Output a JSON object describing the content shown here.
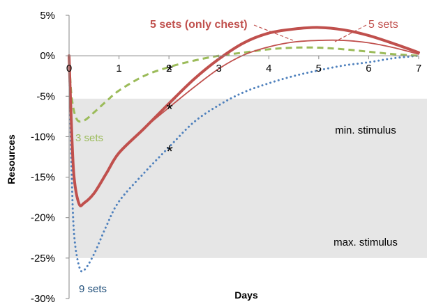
{
  "chart_data": {
    "type": "line",
    "xlabel": "Days",
    "ylabel": "Resources",
    "xlim": [
      0,
      7
    ],
    "ylim": [
      -30,
      5
    ],
    "x_ticks": [
      "0",
      "1",
      "2",
      "3",
      "4",
      "5",
      "6",
      "7"
    ],
    "y_ticks": [
      "5%",
      "0%",
      "-5%",
      "-10%",
      "-15%",
      "-20%",
      "-25%",
      "-30%"
    ],
    "stimulus_band": {
      "from": -25,
      "to": -5.3,
      "color": "#e6e6e6"
    },
    "band_labels": {
      "min": "min. stimulus",
      "max": "max. stimulus"
    },
    "series": [
      {
        "name": "5 sets (only chest)",
        "color": "#c0504d",
        "style": "solid-thick",
        "x": [
          0,
          0.05,
          0.1,
          0.2,
          0.3,
          0.5,
          0.75,
          1,
          1.5,
          2,
          2.5,
          3,
          3.5,
          4,
          4.5,
          5,
          5.5,
          6,
          6.5,
          7
        ],
        "y": [
          0,
          -9,
          -15,
          -18.3,
          -18.2,
          -17,
          -14.5,
          -12,
          -9,
          -5.9,
          -2.9,
          -0.4,
          1.6,
          2.8,
          3.3,
          3.5,
          3.2,
          2.5,
          1.5,
          0.4
        ]
      },
      {
        "name": "5 sets",
        "color": "#c0504d",
        "style": "solid-thin",
        "x": [
          0,
          0.05,
          0.1,
          0.2,
          0.3,
          0.5,
          0.75,
          1,
          1.5,
          2,
          2.5,
          3,
          3.5,
          4,
          4.5,
          5,
          5.5,
          6,
          6.5,
          7
        ],
        "y": [
          0,
          -9,
          -15,
          -18.3,
          -18.2,
          -17,
          -14.5,
          -12,
          -9,
          -6.4,
          -3.9,
          -1.6,
          0.1,
          1.1,
          1.7,
          1.9,
          1.9,
          1.6,
          1.0,
          0.2
        ]
      },
      {
        "name": "3 sets",
        "color": "#9bbb59",
        "style": "dashed",
        "x": [
          0,
          0.05,
          0.15,
          0.3,
          0.5,
          0.75,
          1,
          1.5,
          2,
          2.5,
          3,
          3.5,
          4,
          4.5,
          5,
          5.5,
          6,
          6.5,
          7
        ],
        "y": [
          0,
          -5,
          -7.8,
          -8.0,
          -7.0,
          -5.6,
          -4.3,
          -2.5,
          -1.4,
          -0.6,
          0,
          0.4,
          0.8,
          1.0,
          1.0,
          0.8,
          0.5,
          0.2,
          0
        ]
      },
      {
        "name": "9 sets",
        "color": "#4f81bd",
        "style": "dotted",
        "x": [
          0,
          0.05,
          0.1,
          0.2,
          0.3,
          0.5,
          0.75,
          1,
          1.5,
          2,
          2.5,
          3,
          3.5,
          4,
          4.5,
          5,
          5.5,
          6,
          6.5,
          7
        ],
        "y": [
          0,
          -14,
          -22,
          -26,
          -26.5,
          -24.5,
          -21,
          -18,
          -14.5,
          -11.3,
          -8.2,
          -6.1,
          -4.5,
          -3.4,
          -2.5,
          -1.8,
          -1.2,
          -0.8,
          -0.3,
          0
        ]
      }
    ],
    "asterisks": [
      {
        "x": 2,
        "y": -1.3,
        "label": "*"
      },
      {
        "x": 2,
        "y": -6.1,
        "label": "*"
      },
      {
        "x": 2,
        "y": -11.3,
        "label": "*"
      }
    ],
    "annotations": [
      {
        "text": "5 sets (only chest)",
        "color": "#c0504d",
        "bold": true
      },
      {
        "text": "5 sets",
        "color": "#c0504d",
        "bold": false
      },
      {
        "text": "3 sets",
        "color": "#9bbb59",
        "bold": false
      },
      {
        "text": "9 sets",
        "color": "#1f4e79",
        "bold": false
      }
    ]
  }
}
